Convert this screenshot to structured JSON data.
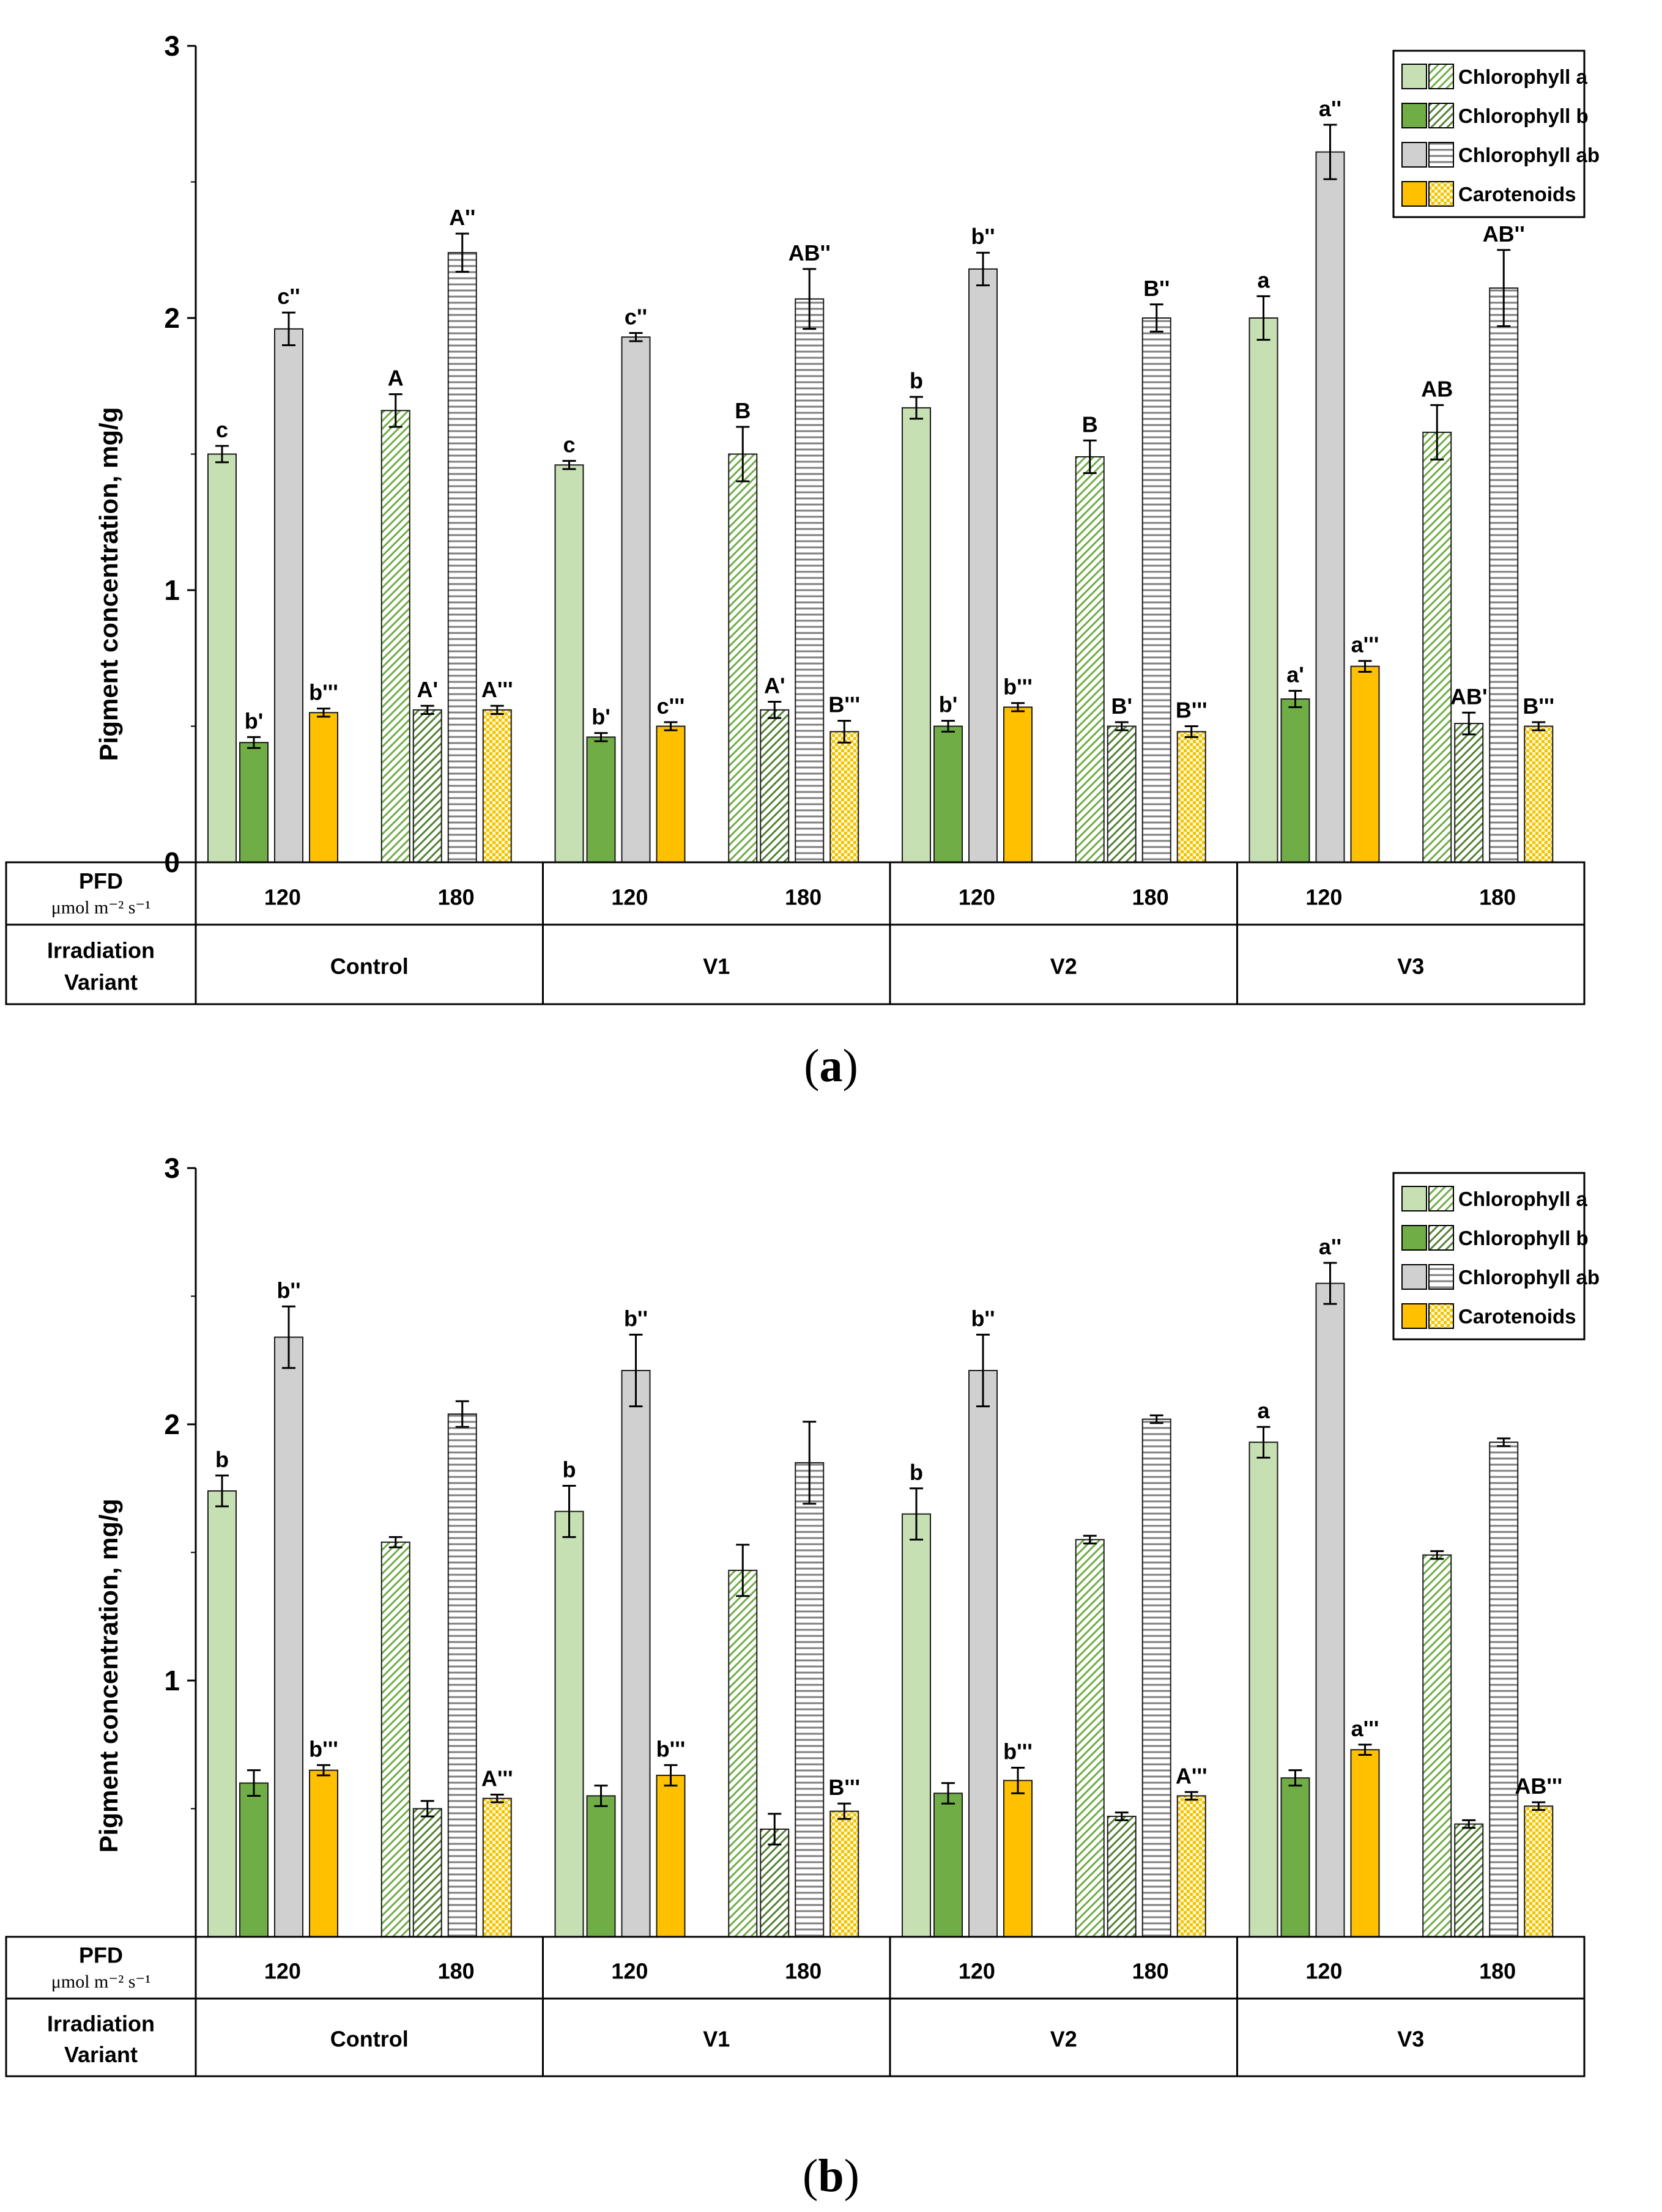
{
  "colors": {
    "chla": "#c6e0b4",
    "chlb": "#70ad47",
    "chlab": "#d0d0d0",
    "car": "#ffc000",
    "chla_hatch": "#70ad47",
    "chlb_hatch": "#548235",
    "chlab_hatch": "#7f7f7f",
    "car_hatch": "#f2c400",
    "axis": "#000000",
    "bar_stroke": "#1a1a1a"
  },
  "chart_data": [
    {
      "type": "bar",
      "panel_label": "a",
      "ylabel": "Pigment concentration, mg/g",
      "ylim": [
        0,
        3
      ],
      "yticks": [
        "0",
        "1",
        "2",
        "3"
      ],
      "table": {
        "row1_label_line1": "PFD",
        "row1_label_line2": "μmol m⁻² s⁻¹",
        "row2_label_line1": "Irradiation",
        "row2_label_line2": "Variant"
      },
      "legend": [
        "Chlorophyll a",
        "Chlorophyll b",
        "Chlorophyll ab",
        "Carotenoids"
      ],
      "groups": [
        {
          "variant": "Control",
          "pfd": [
            "120",
            "180"
          ]
        },
        {
          "variant": "V1",
          "pfd": [
            "120",
            "180"
          ]
        },
        {
          "variant": "V2",
          "pfd": [
            "120",
            "180"
          ]
        },
        {
          "variant": "V3",
          "pfd": [
            "120",
            "180"
          ]
        }
      ],
      "series": [
        {
          "name": "Chlorophyll a",
          "values": [
            1.5,
            1.66,
            1.46,
            1.5,
            1.67,
            1.49,
            2.0,
            1.58
          ],
          "errors": [
            0.03,
            0.06,
            0.015,
            0.1,
            0.04,
            0.06,
            0.08,
            0.1
          ],
          "letters": [
            "c",
            "A",
            "c",
            "B",
            "b",
            "B",
            "a",
            "AB"
          ]
        },
        {
          "name": "Chlorophyll b",
          "values": [
            0.44,
            0.56,
            0.46,
            0.56,
            0.5,
            0.5,
            0.6,
            0.51
          ],
          "errors": [
            0.02,
            0.015,
            0.015,
            0.03,
            0.02,
            0.015,
            0.03,
            0.04
          ],
          "letters": [
            "b'",
            "A'",
            "b'",
            "A'",
            "b'",
            "B'",
            "a'",
            "AB'"
          ]
        },
        {
          "name": "Chlorophyll ab",
          "values": [
            1.96,
            2.24,
            1.93,
            2.07,
            2.18,
            2.0,
            2.61,
            2.11
          ],
          "errors": [
            0.06,
            0.07,
            0.015,
            0.11,
            0.06,
            0.05,
            0.1,
            0.14
          ],
          "letters": [
            "c''",
            "A''",
            "c''",
            "AB''",
            "b''",
            "B''",
            "a''",
            "AB''"
          ]
        },
        {
          "name": "Carotenoids",
          "values": [
            0.55,
            0.56,
            0.5,
            0.48,
            0.57,
            0.48,
            0.72,
            0.5
          ],
          "errors": [
            0.015,
            0.015,
            0.015,
            0.04,
            0.015,
            0.02,
            0.02,
            0.015
          ],
          "letters": [
            "b'''",
            "A'''",
            "c'''",
            "B'''",
            "b'''",
            "B'''",
            "a'''",
            "B'''"
          ]
        }
      ]
    },
    {
      "type": "bar",
      "panel_label": "b",
      "ylabel": "Pigment concentration, mg/g",
      "ylim": [
        0,
        3
      ],
      "yticks": [
        "",
        "1",
        "2",
        "3"
      ],
      "table": {
        "row1_label_line1": "PFD",
        "row1_label_line2": "μmol m⁻² s⁻¹",
        "row2_label_line1": "Irradiation",
        "row2_label_line2": "Variant"
      },
      "legend": [
        "Chlorophyll a",
        "Chlorophyll b",
        "Chlorophyll ab",
        "Carotenoids"
      ],
      "groups": [
        {
          "variant": "Control",
          "pfd": [
            "120",
            "180"
          ]
        },
        {
          "variant": "V1",
          "pfd": [
            "120",
            "180"
          ]
        },
        {
          "variant": "V2",
          "pfd": [
            "120",
            "180"
          ]
        },
        {
          "variant": "V3",
          "pfd": [
            "120",
            "180"
          ]
        }
      ],
      "series": [
        {
          "name": "Chlorophyll a",
          "values": [
            1.74,
            1.54,
            1.66,
            1.43,
            1.65,
            1.55,
            1.93,
            1.49
          ],
          "errors": [
            0.06,
            0.02,
            0.1,
            0.1,
            0.1,
            0.015,
            0.06,
            0.015
          ],
          "letters": [
            "b",
            "",
            "b",
            "",
            "b",
            "",
            "a",
            ""
          ]
        },
        {
          "name": "Chlorophyll b",
          "values": [
            0.6,
            0.5,
            0.55,
            0.42,
            0.56,
            0.47,
            0.62,
            0.44
          ],
          "errors": [
            0.05,
            0.03,
            0.04,
            0.06,
            0.04,
            0.015,
            0.03,
            0.015
          ],
          "letters": [
            "",
            "",
            "",
            "",
            "",
            "",
            "",
            ""
          ]
        },
        {
          "name": "Chlorophyll ab",
          "values": [
            2.34,
            2.04,
            2.21,
            1.85,
            2.21,
            2.02,
            2.55,
            1.93
          ],
          "errors": [
            0.12,
            0.05,
            0.14,
            0.16,
            0.14,
            0.015,
            0.08,
            0.015
          ],
          "letters": [
            "b''",
            "",
            "b''",
            "",
            "b''",
            "",
            "a''",
            ""
          ]
        },
        {
          "name": "Carotenoids",
          "values": [
            0.65,
            0.54,
            0.63,
            0.49,
            0.61,
            0.55,
            0.73,
            0.51
          ],
          "errors": [
            0.02,
            0.015,
            0.04,
            0.03,
            0.05,
            0.015,
            0.02,
            0.015
          ],
          "letters": [
            "b'''",
            "A'''",
            "b'''",
            "B'''",
            "b'''",
            "A'''",
            "a'''",
            "AB'''"
          ]
        }
      ]
    }
  ]
}
